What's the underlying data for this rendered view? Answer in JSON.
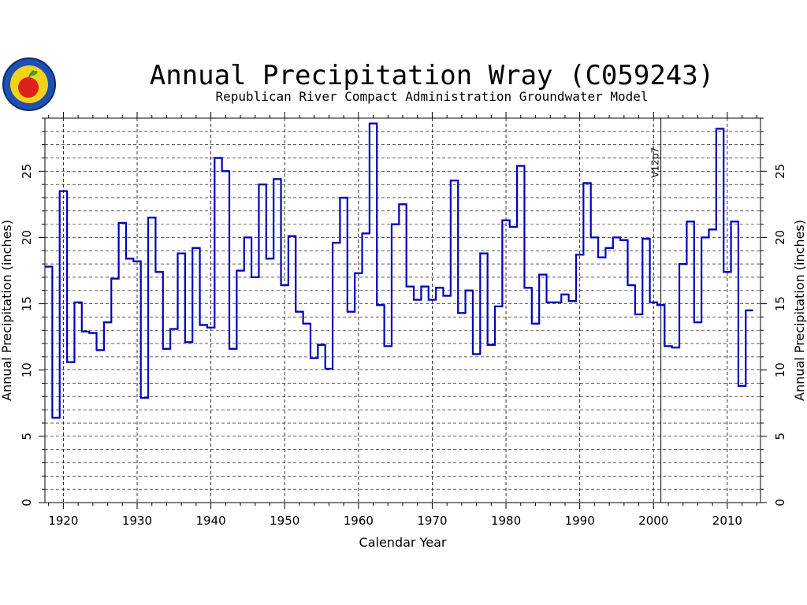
{
  "chart_data": {
    "type": "line",
    "style": "step",
    "title": "Annual Precipitation Wray (C059243)",
    "subtitle": "Republican River Compact Administration Groundwater Model",
    "xlabel": "Calendar Year",
    "ylabel": "Annual Precipitation (inches)",
    "xlim": [
      1917.5,
      2014.5
    ],
    "ylim": [
      0,
      29
    ],
    "x_ticks": [
      "1920",
      "1930",
      "1940",
      "1950",
      "1960",
      "1970",
      "1980",
      "1990",
      "2000",
      "2010"
    ],
    "y_ticks": [
      "0",
      "5",
      "10",
      "15",
      "20",
      "25"
    ],
    "grid": true,
    "marker_line": {
      "x": 2001,
      "label": "V12p7"
    },
    "series_color": "#0000bb",
    "x": [
      1918,
      1919,
      1920,
      1921,
      1922,
      1923,
      1924,
      1925,
      1926,
      1927,
      1928,
      1929,
      1930,
      1931,
      1932,
      1933,
      1934,
      1935,
      1936,
      1937,
      1938,
      1939,
      1940,
      1941,
      1942,
      1943,
      1944,
      1945,
      1946,
      1947,
      1948,
      1949,
      1950,
      1951,
      1952,
      1953,
      1954,
      1955,
      1956,
      1957,
      1958,
      1959,
      1960,
      1961,
      1962,
      1963,
      1964,
      1965,
      1966,
      1967,
      1968,
      1969,
      1970,
      1971,
      1972,
      1973,
      1974,
      1975,
      1976,
      1977,
      1978,
      1979,
      1980,
      1981,
      1982,
      1983,
      1984,
      1985,
      1986,
      1987,
      1988,
      1989,
      1990,
      1991,
      1992,
      1993,
      1994,
      1995,
      1996,
      1997,
      1998,
      1999,
      2000,
      2001,
      2002,
      2003,
      2004,
      2005,
      2006,
      2007,
      2008,
      2009,
      2010,
      2011,
      2012,
      2013
    ],
    "values": [
      17.8,
      6.4,
      23.5,
      10.6,
      15.1,
      12.9,
      12.8,
      11.5,
      13.6,
      16.9,
      21.1,
      18.4,
      18.2,
      7.9,
      21.5,
      17.4,
      11.6,
      13.1,
      18.8,
      12.1,
      19.2,
      13.4,
      13.2,
      26.0,
      25.0,
      11.6,
      17.5,
      20.0,
      17.0,
      24.0,
      18.4,
      24.4,
      16.4,
      20.1,
      14.4,
      13.5,
      10.9,
      11.9,
      10.1,
      19.6,
      23.0,
      14.4,
      17.3,
      20.3,
      28.6,
      14.9,
      11.8,
      21.0,
      22.5,
      16.3,
      15.3,
      16.3,
      15.3,
      16.2,
      15.6,
      24.3,
      14.3,
      16.0,
      11.2,
      18.8,
      11.9,
      14.8,
      21.3,
      20.8,
      25.4,
      16.2,
      13.5,
      17.2,
      15.1,
      15.1,
      15.7,
      15.2,
      18.7,
      24.1,
      20.0,
      18.5,
      19.2,
      20.0,
      19.8,
      16.4,
      14.2,
      19.9,
      15.1,
      14.9,
      11.8,
      11.7,
      18.0,
      21.2,
      13.6,
      20.0,
      20.6,
      28.2,
      17.4,
      21.2,
      8.8,
      14.5
    ]
  }
}
